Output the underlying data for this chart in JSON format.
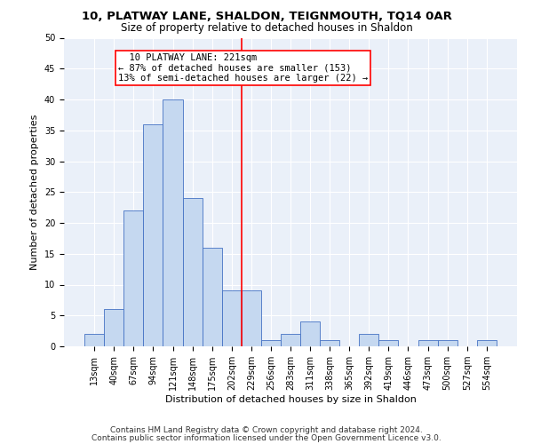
{
  "title": "10, PLATWAY LANE, SHALDON, TEIGNMOUTH, TQ14 0AR",
  "subtitle": "Size of property relative to detached houses in Shaldon",
  "xlabel": "Distribution of detached houses by size in Shaldon",
  "ylabel": "Number of detached properties",
  "categories": [
    "13sqm",
    "40sqm",
    "67sqm",
    "94sqm",
    "121sqm",
    "148sqm",
    "175sqm",
    "202sqm",
    "229sqm",
    "256sqm",
    "283sqm",
    "311sqm",
    "338sqm",
    "365sqm",
    "392sqm",
    "419sqm",
    "446sqm",
    "473sqm",
    "500sqm",
    "527sqm",
    "554sqm"
  ],
  "values": [
    2,
    6,
    22,
    36,
    40,
    24,
    16,
    9,
    9,
    1,
    2,
    4,
    1,
    0,
    2,
    1,
    0,
    1,
    1,
    0,
    1
  ],
  "bar_color": "#c5d8f0",
  "bar_edge_color": "#4472c4",
  "vline_x": 7.5,
  "vline_color": "red",
  "annotation_text": "  10 PLATWAY LANE: 221sqm\n← 87% of detached houses are smaller (153)\n13% of semi-detached houses are larger (22) →",
  "annotation_box_color": "red",
  "ylim": [
    0,
    50
  ],
  "yticks": [
    0,
    5,
    10,
    15,
    20,
    25,
    30,
    35,
    40,
    45,
    50
  ],
  "bg_color": "#eaf0f9",
  "grid_color": "#ffffff",
  "footer1": "Contains HM Land Registry data © Crown copyright and database right 2024.",
  "footer2": "Contains public sector information licensed under the Open Government Licence v3.0.",
  "title_fontsize": 9.5,
  "subtitle_fontsize": 8.5,
  "xlabel_fontsize": 8,
  "ylabel_fontsize": 8,
  "tick_fontsize": 7,
  "annot_fontsize": 7.5,
  "footer_fontsize": 6.5
}
